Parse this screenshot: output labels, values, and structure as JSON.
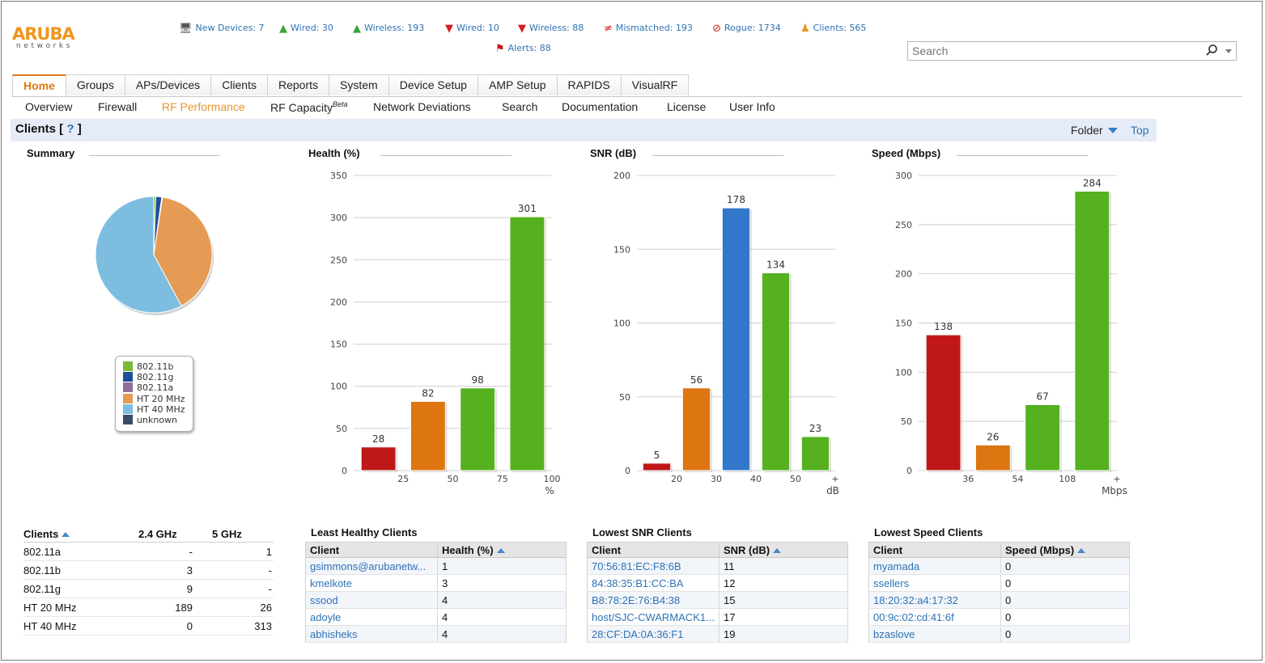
{
  "header": {
    "logo_main": "ARUBA",
    "logo_sub": "networks",
    "stats": [
      {
        "icon": "new-device-icon",
        "glyph": "🖥",
        "color": "#555555",
        "label": "New Devices: 7"
      },
      {
        "icon": "arrow-up-icon",
        "glyph": "▲",
        "color": "#3aa53a",
        "label": "Wired: 30"
      },
      {
        "icon": "arrow-up-icon",
        "glyph": "▲",
        "color": "#3aa53a",
        "label": "Wireless: 193"
      },
      {
        "icon": "arrow-down-icon",
        "glyph": "▼",
        "color": "#d42020",
        "label": "Wired: 10"
      },
      {
        "icon": "arrow-down-icon",
        "glyph": "▼",
        "color": "#d42020",
        "label": "Wireless: 88"
      },
      {
        "icon": "not-equal-icon",
        "glyph": "≠",
        "color": "#d42020",
        "label": "Mismatched: 193"
      },
      {
        "icon": "no-entry-icon",
        "glyph": "⊘",
        "color": "#d42020",
        "label": "Rogue: 1734"
      },
      {
        "icon": "client-icon",
        "glyph": "♟",
        "color": "#e8962c",
        "label": "Clients: 565"
      }
    ],
    "alerts": {
      "icon": "flag-icon",
      "glyph": "⚑",
      "color": "#c81818",
      "label": "Alerts: 88"
    },
    "search_placeholder": "Search"
  },
  "tabs": [
    "Home",
    "Groups",
    "APs/Devices",
    "Clients",
    "Reports",
    "System",
    "Device Setup",
    "AMP Setup",
    "RAPIDS",
    "VisualRF"
  ],
  "subnav": [
    "Overview",
    "Firewall",
    "RF Performance",
    "RF Capacity",
    "Network Deviations",
    "Search",
    "Documentation",
    "License",
    "User Info"
  ],
  "subnav_beta": "Beta",
  "title": {
    "text": "Clients",
    "help": "?",
    "folder": "Folder",
    "top": "Top"
  },
  "summary": {
    "title": "Summary",
    "legend": [
      {
        "label": "802.11b",
        "color": "#7ab83a"
      },
      {
        "label": "802.11g",
        "color": "#1f4e99"
      },
      {
        "label": "802.11a",
        "color": "#8e6e9b"
      },
      {
        "label": "HT 20 MHz",
        "color": "#e59b53"
      },
      {
        "label": "HT 40 MHz",
        "color": "#7dbde0"
      },
      {
        "label": "unknown",
        "color": "#3a4c68"
      }
    ]
  },
  "chart_data": [
    {
      "type": "pie",
      "title": "Summary",
      "slices": [
        {
          "label": "802.11b",
          "value": 3,
          "color": "#7ab83a"
        },
        {
          "label": "802.11g",
          "value": 9,
          "color": "#1f4e99"
        },
        {
          "label": "802.11a",
          "value": 1,
          "color": "#8e6e9b"
        },
        {
          "label": "HT 20 MHz",
          "value": 215,
          "color": "#e59b53"
        },
        {
          "label": "HT 40 MHz",
          "value": 313,
          "color": "#7dbde0"
        },
        {
          "label": "unknown",
          "value": 0,
          "color": "#3a4c68"
        }
      ]
    },
    {
      "type": "bar",
      "title": "Health (%)",
      "unit": "%",
      "ylim": [
        0,
        350
      ],
      "yticks": [
        0,
        50,
        100,
        150,
        200,
        250,
        300,
        350
      ],
      "xticks": [
        "25",
        "50",
        "75",
        "100"
      ],
      "values": [
        28,
        82,
        98,
        301
      ],
      "colors": [
        "#c01818",
        "#dd7511",
        "#55b11f",
        "#55b11f"
      ],
      "xlabel": "%"
    },
    {
      "type": "bar",
      "title": "SNR (dB)",
      "unit": "dB",
      "ylim": [
        0,
        200
      ],
      "yticks": [
        0,
        50,
        100,
        150,
        200
      ],
      "xticks": [
        "20",
        "30",
        "40",
        "50",
        "+"
      ],
      "values": [
        5,
        56,
        178,
        134,
        23
      ],
      "colors": [
        "#c01818",
        "#dd7511",
        "#3277c9",
        "#55b11f",
        "#55b11f"
      ],
      "xlabel": "dB"
    },
    {
      "type": "bar",
      "title": "Speed (Mbps)",
      "unit": "Mbps",
      "ylim": [
        0,
        300
      ],
      "yticks": [
        0,
        50,
        100,
        150,
        200,
        250,
        300
      ],
      "xticks": [
        "36",
        "54",
        "108",
        "+"
      ],
      "values": [
        138,
        26,
        67,
        284
      ],
      "colors": [
        "#c01818",
        "#dd7511",
        "#55b11f",
        "#55b11f"
      ],
      "xlabel": "Mbps"
    }
  ],
  "clients_table": {
    "headers": [
      "Clients",
      "2.4 GHz",
      "5 GHz"
    ],
    "rows": [
      [
        "802.11a",
        "-",
        "1"
      ],
      [
        "802.11b",
        "3",
        "-"
      ],
      [
        "802.11g",
        "9",
        "-"
      ],
      [
        "HT 20 MHz",
        "189",
        "26"
      ],
      [
        "HT 40 MHz",
        "0",
        "313"
      ]
    ]
  },
  "least_healthy": {
    "title": "Least Healthy Clients",
    "headers": [
      "Client",
      "Health (%)"
    ],
    "rows": [
      [
        "gsimmons@arubanetw...",
        "1"
      ],
      [
        "kmelkote",
        "3"
      ],
      [
        "ssood",
        "4"
      ],
      [
        "adoyle",
        "4"
      ],
      [
        "abhisheks",
        "4"
      ]
    ]
  },
  "lowest_snr": {
    "title": "Lowest SNR Clients",
    "headers": [
      "Client",
      "SNR (dB)"
    ],
    "rows": [
      [
        "70:56:81:EC:F8:6B",
        "11"
      ],
      [
        "84:38:35:B1:CC:BA",
        "12"
      ],
      [
        "B8:78:2E:76:B4:38",
        "15"
      ],
      [
        "host/SJC-CWARMACK1...",
        "17"
      ],
      [
        "28:CF:DA:0A:36:F1",
        "19"
      ]
    ]
  },
  "lowest_speed": {
    "title": "Lowest Speed Clients",
    "headers": [
      "Client",
      "Speed (Mbps)"
    ],
    "rows": [
      [
        "myamada",
        "0"
      ],
      [
        "ssellers",
        "0"
      ],
      [
        "18:20:32:a4:17:32",
        "0"
      ],
      [
        "00:9c:02:cd:41:6f",
        "0"
      ],
      [
        "bzaslove",
        "0"
      ]
    ]
  }
}
